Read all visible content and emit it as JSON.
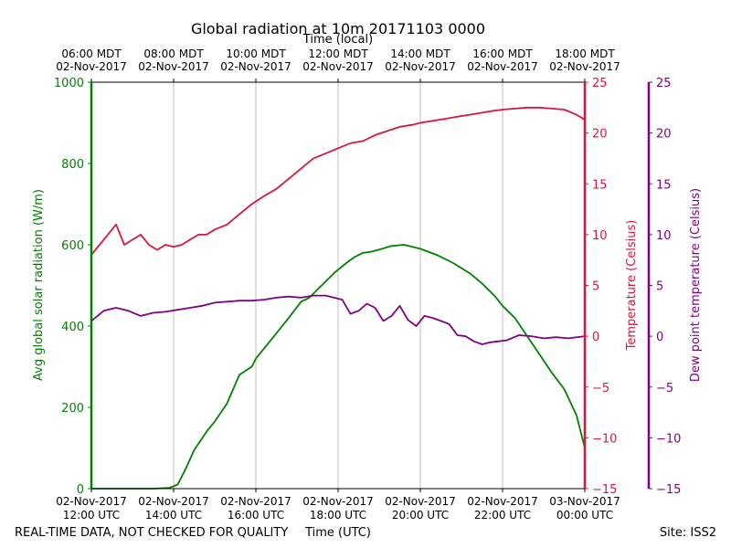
{
  "chart_data": {
    "type": "line",
    "title": "Global radiation at 10m 20171103 0000",
    "x_top_label": "Time (local)",
    "x_bottom_label": "Time (UTC)",
    "x_range_utc_hours": [
      12,
      24
    ],
    "x_top_ticks": [
      {
        "line1": "06:00 MDT",
        "line2": "02-Nov-2017"
      },
      {
        "line1": "08:00 MDT",
        "line2": "02-Nov-2017"
      },
      {
        "line1": "10:00 MDT",
        "line2": "02-Nov-2017"
      },
      {
        "line1": "12:00 MDT",
        "line2": "02-Nov-2017"
      },
      {
        "line1": "14:00 MDT",
        "line2": "02-Nov-2017"
      },
      {
        "line1": "16:00 MDT",
        "line2": "02-Nov-2017"
      },
      {
        "line1": "18:00 MDT",
        "line2": "02-Nov-2017"
      }
    ],
    "x_bottom_ticks": [
      {
        "line1": "02-Nov-2017",
        "line2": "12:00 UTC"
      },
      {
        "line1": "02-Nov-2017",
        "line2": "14:00 UTC"
      },
      {
        "line1": "02-Nov-2017",
        "line2": "16:00 UTC"
      },
      {
        "line1": "02-Nov-2017",
        "line2": "18:00 UTC"
      },
      {
        "line1": "02-Nov-2017",
        "line2": "20:00 UTC"
      },
      {
        "line1": "02-Nov-2017",
        "line2": "22:00 UTC"
      },
      {
        "line1": "03-Nov-2017",
        "line2": "00:00 UTC"
      }
    ],
    "grid_vertical": true,
    "axes": {
      "radiation": {
        "label": "Avg global solar radiation (W/m)",
        "range": [
          0,
          1000
        ],
        "ticks": [
          "0",
          "200",
          "400",
          "600",
          "800",
          "1000"
        ],
        "color": "#008000"
      },
      "temperature": {
        "label": "Temperature (Celsius)",
        "range": [
          -15,
          25
        ],
        "ticks": [
          "−15",
          "−10",
          "−5",
          "0",
          "5",
          "10",
          "15",
          "20",
          "25"
        ],
        "color": "#dc143c"
      },
      "dewpoint": {
        "label": "Dew point temperature (Celsius)",
        "range": [
          -15,
          25
        ],
        "ticks": [
          "−15",
          "−10",
          "−5",
          "0",
          "5",
          "10",
          "15",
          "20",
          "25"
        ],
        "color": "#800080"
      }
    },
    "series": [
      {
        "name": "Avg global solar radiation",
        "axis": "radiation",
        "color": "#008000",
        "x": [
          12.0,
          12.5,
          13.0,
          13.5,
          13.9,
          14.1,
          14.3,
          14.5,
          14.8,
          15.0,
          15.3,
          15.6,
          15.9,
          16.0,
          16.4,
          16.8,
          17.1,
          17.3,
          17.6,
          17.9,
          18.2,
          18.4,
          18.6,
          18.8,
          19.0,
          19.3,
          19.6,
          20.0,
          20.4,
          20.8,
          21.2,
          21.5,
          21.8,
          22.0,
          22.3,
          22.6,
          22.9,
          23.2,
          23.5,
          23.8,
          24.0
        ],
        "values": [
          0,
          0,
          0,
          0,
          2,
          10,
          50,
          95,
          140,
          165,
          210,
          280,
          300,
          320,
          370,
          420,
          460,
          470,
          500,
          530,
          555,
          570,
          580,
          583,
          588,
          597,
          600,
          590,
          575,
          555,
          530,
          505,
          475,
          450,
          420,
          375,
          330,
          285,
          245,
          180,
          100
        ]
      },
      {
        "name": "Temperature",
        "axis": "temperature",
        "color": "#dc143c",
        "x": [
          12.0,
          12.2,
          12.4,
          12.6,
          12.8,
          13.0,
          13.2,
          13.4,
          13.6,
          13.8,
          14.0,
          14.2,
          14.4,
          14.6,
          14.8,
          15.0,
          15.3,
          15.6,
          15.9,
          16.2,
          16.5,
          16.8,
          17.1,
          17.4,
          17.7,
          18.0,
          18.3,
          18.6,
          18.9,
          19.2,
          19.5,
          19.8,
          20.0,
          20.3,
          20.6,
          20.9,
          21.2,
          21.5,
          21.8,
          22.0,
          22.3,
          22.6,
          22.9,
          23.2,
          23.5,
          23.8,
          24.0
        ],
        "values": [
          8,
          9,
          10,
          11,
          9,
          9.5,
          10,
          9,
          8.5,
          9,
          8.8,
          9,
          9.5,
          10,
          10,
          10.5,
          11,
          12,
          13,
          13.8,
          14.5,
          15.5,
          16.5,
          17.5,
          18,
          18.5,
          19,
          19.2,
          19.8,
          20.2,
          20.6,
          20.8,
          21,
          21.2,
          21.4,
          21.6,
          21.8,
          22,
          22.2,
          22.3,
          22.4,
          22.5,
          22.5,
          22.4,
          22.3,
          21.8,
          21.3
        ]
      },
      {
        "name": "Dew point temperature",
        "axis": "dewpoint",
        "color": "#800080",
        "x": [
          12.0,
          12.3,
          12.6,
          12.9,
          13.2,
          13.5,
          13.8,
          14.1,
          14.4,
          14.7,
          15.0,
          15.3,
          15.6,
          15.9,
          16.2,
          16.5,
          16.8,
          17.1,
          17.4,
          17.7,
          17.9,
          18.1,
          18.3,
          18.5,
          18.7,
          18.9,
          19.1,
          19.3,
          19.5,
          19.7,
          19.9,
          20.1,
          20.3,
          20.5,
          20.7,
          20.9,
          21.1,
          21.3,
          21.5,
          21.7,
          21.9,
          22.1,
          22.4,
          22.7,
          23.0,
          23.3,
          23.6,
          24.0
        ],
        "values": [
          1.5,
          2.5,
          2.8,
          2.5,
          2,
          2.3,
          2.4,
          2.6,
          2.8,
          3,
          3.3,
          3.4,
          3.5,
          3.5,
          3.6,
          3.8,
          3.9,
          3.8,
          4,
          4,
          3.8,
          3.6,
          2.2,
          2.5,
          3.2,
          2.8,
          1.5,
          2,
          3,
          1.6,
          1,
          2,
          1.8,
          1.5,
          1.2,
          0.1,
          0,
          -0.5,
          -0.8,
          -0.6,
          -0.5,
          -0.4,
          0.1,
          0,
          -0.2,
          -0.1,
          -0.2,
          0
        ]
      }
    ],
    "footer_left": "REAL-TIME DATA, NOT CHECKED FOR QUALITY",
    "footer_right": "Site: ISS2"
  }
}
